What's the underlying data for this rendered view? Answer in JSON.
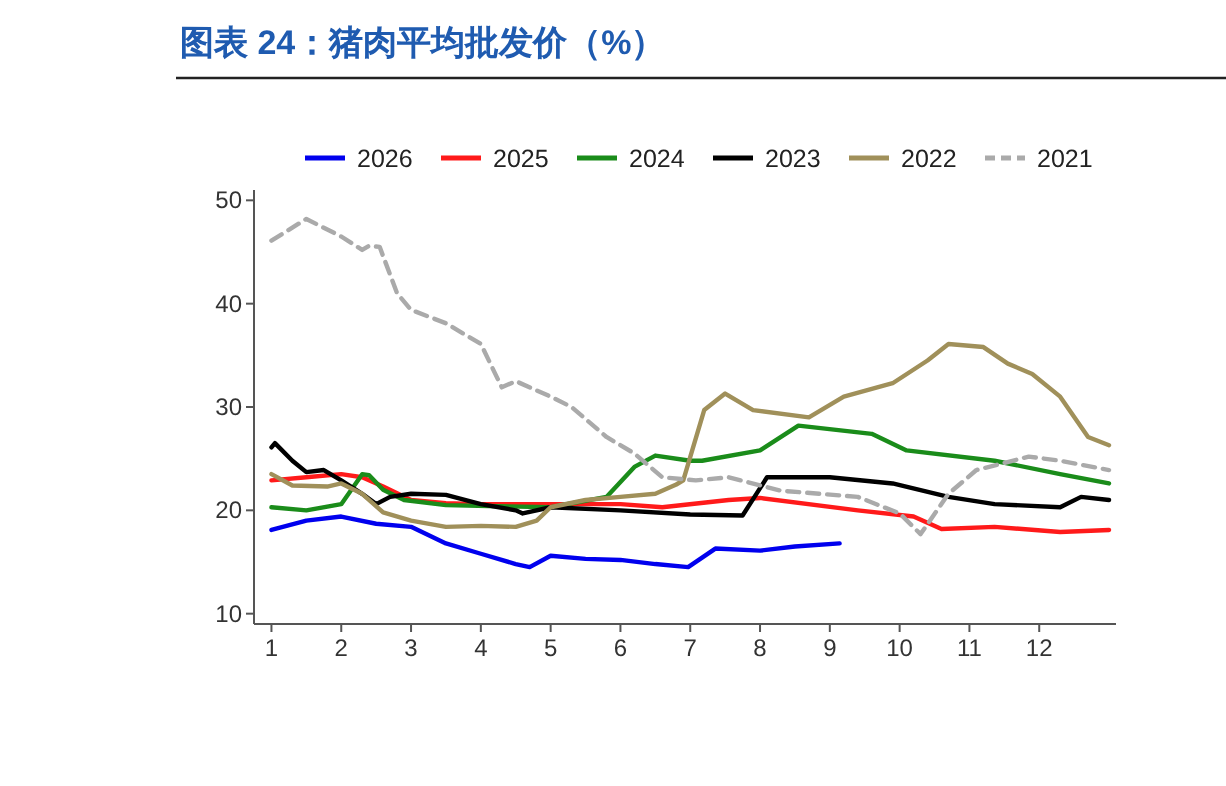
{
  "chart_data": {
    "type": "line",
    "title": "图表 24：猪肉平均批发价（%）",
    "xlim": [
      0.75,
      13.1
    ],
    "xticks": [
      1,
      2,
      3,
      4,
      5,
      6,
      7,
      8,
      9,
      10,
      11,
      12
    ],
    "ylim": [
      9,
      51
    ],
    "yticks": [
      10,
      20,
      30,
      40,
      50
    ],
    "legend": "top",
    "grid": false,
    "line_style": "solid",
    "series": [
      {
        "name": "2026",
        "color": "#0000ee",
        "x": [
          1.0,
          1.5,
          2.0,
          2.5,
          3.0,
          3.5,
          4.0,
          4.5,
          4.7,
          5.0,
          5.5,
          6.0,
          6.5,
          6.97,
          7.36,
          8.0,
          8.5,
          9.14
        ],
        "values": [
          18.1,
          19.0,
          19.4,
          18.7,
          18.4,
          16.8,
          15.8,
          14.8,
          14.5,
          15.6,
          15.3,
          15.2,
          14.8,
          14.5,
          16.3,
          16.1,
          16.5,
          16.8
        ]
      },
      {
        "name": "2025",
        "color": "#ff1a1a",
        "x": [
          1.0,
          1.5,
          2.0,
          2.3,
          2.6,
          3.0,
          3.5,
          4.0,
          5.0,
          6.0,
          6.6,
          7.55,
          8.0,
          9.4,
          10.2,
          10.6,
          11.36,
          12.3,
          13.0
        ],
        "values": [
          22.9,
          23.2,
          23.5,
          23.2,
          22.3,
          21.0,
          20.7,
          20.6,
          20.6,
          20.6,
          20.3,
          21.0,
          21.2,
          20.0,
          19.4,
          18.2,
          18.4,
          17.9,
          18.1
        ]
      },
      {
        "name": "2024",
        "color": "#1a8c1a",
        "x": [
          1.0,
          1.5,
          2.0,
          2.3,
          2.4,
          2.6,
          2.9,
          3.5,
          5.0,
          5.8,
          6.2,
          6.5,
          7.0,
          7.17,
          8.0,
          8.55,
          9.6,
          10.1,
          11.36,
          12.3,
          13.0
        ],
        "values": [
          20.3,
          20.0,
          20.6,
          23.5,
          23.4,
          22.0,
          21.0,
          20.5,
          20.3,
          21.3,
          24.2,
          25.3,
          24.8,
          24.8,
          25.8,
          28.2,
          27.4,
          25.8,
          24.8,
          23.5,
          22.6
        ]
      },
      {
        "name": "2023",
        "color": "#000000",
        "x": [
          1.0,
          1.05,
          1.3,
          1.5,
          1.75,
          2.0,
          2.3,
          2.5,
          2.7,
          3.0,
          3.5,
          4.0,
          4.5,
          4.6,
          5.0,
          6.0,
          7.0,
          7.75,
          8.1,
          9.0,
          9.9,
          10.7,
          11.36,
          12.3,
          12.6,
          13.0
        ],
        "values": [
          26.1,
          26.5,
          24.8,
          23.7,
          23.9,
          22.9,
          21.6,
          20.6,
          21.3,
          21.6,
          21.5,
          20.6,
          20.0,
          19.7,
          20.3,
          20.0,
          19.6,
          19.5,
          23.2,
          23.2,
          22.6,
          21.3,
          20.6,
          20.3,
          21.3,
          21.0
        ]
      },
      {
        "name": "2022",
        "color": "#a0905a",
        "x": [
          1.0,
          1.3,
          1.8,
          2.0,
          2.3,
          2.6,
          3.0,
          3.5,
          4.0,
          4.5,
          4.8,
          5.0,
          5.5,
          6.0,
          6.5,
          6.8,
          6.9,
          7.2,
          7.5,
          7.9,
          8.7,
          9.2,
          9.9,
          10.4,
          10.7,
          11.2,
          11.55,
          11.9,
          12.3,
          12.7,
          13.0
        ],
        "values": [
          23.5,
          22.4,
          22.3,
          22.6,
          21.6,
          19.8,
          19.0,
          18.4,
          18.5,
          18.4,
          19.0,
          20.3,
          21.0,
          21.3,
          21.6,
          22.5,
          22.9,
          29.7,
          31.3,
          29.7,
          29.0,
          31.0,
          32.3,
          34.5,
          36.1,
          35.8,
          34.2,
          33.2,
          31.0,
          27.1,
          26.3
        ]
      },
      {
        "name": "2021",
        "color": "#aaaaaa",
        "line_style": "dashed",
        "x": [
          1.0,
          1.5,
          2.0,
          2.3,
          2.4,
          2.55,
          2.8,
          3.0,
          3.5,
          4.0,
          4.3,
          4.5,
          5.0,
          5.3,
          5.8,
          6.2,
          6.6,
          7.08,
          7.55,
          8.3,
          9.4,
          10.0,
          10.3,
          10.7,
          11.1,
          11.85,
          12.3,
          13.0
        ],
        "values": [
          46.1,
          48.2,
          46.5,
          45.2,
          45.6,
          45.5,
          41.0,
          39.4,
          38.1,
          36.1,
          31.9,
          32.5,
          31.0,
          30.0,
          27.1,
          25.5,
          23.2,
          22.9,
          23.2,
          21.9,
          21.3,
          19.7,
          17.7,
          21.6,
          23.9,
          25.2,
          24.8,
          23.9
        ]
      }
    ]
  }
}
